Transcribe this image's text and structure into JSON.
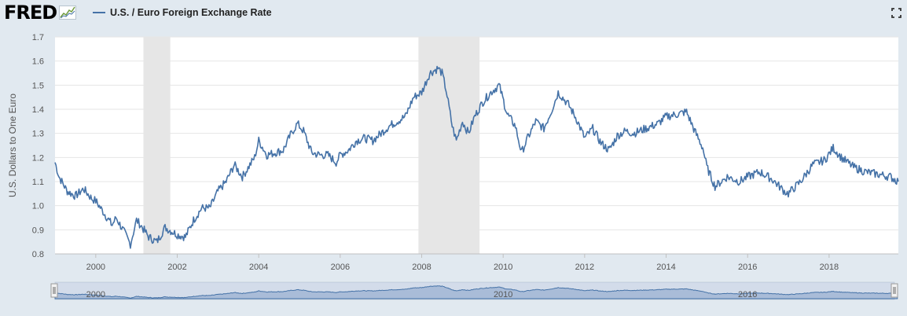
{
  "header": {
    "logo_text": "FRED",
    "series_title": "U.S. / Euro Foreign Exchange Rate"
  },
  "colors": {
    "line": "#4572a7",
    "recession": "#e6e6e6",
    "background": "#e1e9f0",
    "plot": "#ffffff"
  },
  "icons": {
    "logo": "chart-trend-icon",
    "fullscreen": "expand-icon"
  },
  "navigator": {
    "labels": [
      "2000",
      "2010",
      "2016"
    ]
  },
  "chart_data": {
    "type": "line",
    "title": "U.S. / Euro Foreign Exchange Rate",
    "ylabel": "U.S. Dollars to One Euro",
    "xlabel": "",
    "xlim": [
      1999.0,
      2019.7
    ],
    "ylim": [
      0.8,
      1.7
    ],
    "y_ticks": [
      "0.8",
      "0.9",
      "1.0",
      "1.1",
      "1.2",
      "1.3",
      "1.4",
      "1.5",
      "1.6",
      "1.7"
    ],
    "x_ticks": [
      "2000",
      "2002",
      "2004",
      "2006",
      "2008",
      "2010",
      "2012",
      "2014",
      "2016",
      "2018"
    ],
    "grid": "horizontal",
    "legend": "top-left",
    "recessions": [
      [
        2001.17,
        2001.83
      ],
      [
        2007.92,
        2009.42
      ]
    ],
    "series": [
      {
        "name": "U.S. / Euro Foreign Exchange Rate",
        "x": [
          1999.0,
          1999.1,
          1999.3,
          1999.5,
          1999.7,
          1999.9,
          2000.0,
          2000.2,
          2000.4,
          2000.5,
          2000.7,
          2000.85,
          2001.0,
          2001.1,
          2001.3,
          2001.5,
          2001.7,
          2001.8,
          2002.0,
          2002.2,
          2002.4,
          2002.6,
          2002.8,
          2003.0,
          2003.2,
          2003.4,
          2003.6,
          2003.9,
          2004.0,
          2004.2,
          2004.4,
          2004.6,
          2004.8,
          2004.95,
          2005.1,
          2005.3,
          2005.5,
          2005.7,
          2005.9,
          2006.0,
          2006.2,
          2006.4,
          2006.6,
          2006.8,
          2007.0,
          2007.2,
          2007.4,
          2007.6,
          2007.8,
          2008.0,
          2008.2,
          2008.4,
          2008.5,
          2008.6,
          2008.75,
          2008.85,
          2009.0,
          2009.15,
          2009.3,
          2009.5,
          2009.7,
          2009.9,
          2010.1,
          2010.3,
          2010.45,
          2010.6,
          2010.8,
          2011.0,
          2011.2,
          2011.35,
          2011.6,
          2011.8,
          2012.0,
          2012.2,
          2012.4,
          2012.6,
          2012.8,
          2013.0,
          2013.2,
          2013.5,
          2013.8,
          2014.0,
          2014.3,
          2014.5,
          2014.7,
          2014.9,
          2015.0,
          2015.2,
          2015.5,
          2015.8,
          2016.0,
          2016.3,
          2016.6,
          2016.9,
          2017.0,
          2017.3,
          2017.6,
          2017.9,
          2018.1,
          2018.3,
          2018.6,
          2018.9,
          2019.2,
          2019.5,
          2019.7
        ],
        "values": [
          1.18,
          1.12,
          1.06,
          1.04,
          1.07,
          1.03,
          1.02,
          0.97,
          0.92,
          0.95,
          0.89,
          0.84,
          0.94,
          0.92,
          0.87,
          0.85,
          0.91,
          0.9,
          0.88,
          0.87,
          0.94,
          0.99,
          0.99,
          1.06,
          1.1,
          1.17,
          1.12,
          1.2,
          1.27,
          1.21,
          1.22,
          1.23,
          1.3,
          1.34,
          1.31,
          1.22,
          1.21,
          1.21,
          1.18,
          1.21,
          1.23,
          1.27,
          1.28,
          1.27,
          1.3,
          1.33,
          1.35,
          1.37,
          1.45,
          1.47,
          1.55,
          1.57,
          1.55,
          1.48,
          1.33,
          1.27,
          1.35,
          1.3,
          1.37,
          1.43,
          1.47,
          1.5,
          1.38,
          1.33,
          1.22,
          1.28,
          1.35,
          1.32,
          1.4,
          1.47,
          1.42,
          1.36,
          1.28,
          1.32,
          1.26,
          1.23,
          1.29,
          1.31,
          1.3,
          1.32,
          1.34,
          1.37,
          1.38,
          1.39,
          1.31,
          1.24,
          1.16,
          1.08,
          1.12,
          1.1,
          1.12,
          1.14,
          1.11,
          1.06,
          1.05,
          1.1,
          1.17,
          1.19,
          1.24,
          1.2,
          1.16,
          1.14,
          1.13,
          1.12,
          1.1
        ]
      }
    ]
  }
}
